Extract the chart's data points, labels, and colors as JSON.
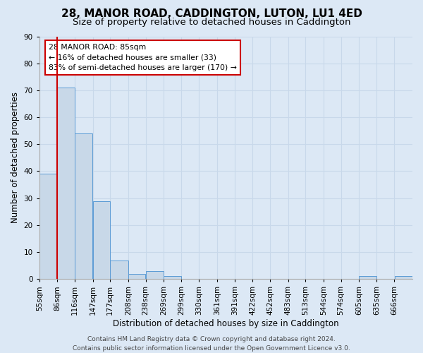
{
  "title": "28, MANOR ROAD, CADDINGTON, LUTON, LU1 4ED",
  "subtitle": "Size of property relative to detached houses in Caddington",
  "xlabel": "Distribution of detached houses by size in Caddington",
  "ylabel": "Number of detached properties",
  "bar_edges": [
    55,
    86,
    116,
    147,
    177,
    208,
    238,
    269,
    299,
    330,
    361,
    391,
    422,
    452,
    483,
    513,
    544,
    574,
    605,
    635,
    666,
    697
  ],
  "bar_heights": [
    39,
    71,
    54,
    29,
    7,
    2,
    3,
    1,
    0,
    0,
    0,
    0,
    0,
    0,
    0,
    0,
    0,
    0,
    1,
    0,
    1
  ],
  "bar_color": "#c8d8e8",
  "bar_edgecolor": "#5b9bd5",
  "property_line_x": 86,
  "property_line_color": "#cc0000",
  "annotation_text": "28 MANOR ROAD: 85sqm\n← 16% of detached houses are smaller (33)\n83% of semi-detached houses are larger (170) →",
  "annotation_box_color": "#ffffff",
  "annotation_box_edgecolor": "#cc0000",
  "ylim": [
    0,
    90
  ],
  "yticks": [
    0,
    10,
    20,
    30,
    40,
    50,
    60,
    70,
    80,
    90
  ],
  "grid_color": "#c8d8ea",
  "background_color": "#dce8f5",
  "footer_text": "Contains HM Land Registry data © Crown copyright and database right 2024.\nContains public sector information licensed under the Open Government Licence v3.0.",
  "title_fontsize": 11,
  "subtitle_fontsize": 9.5,
  "xlabel_fontsize": 8.5,
  "ylabel_fontsize": 8.5,
  "tick_fontsize": 7.5,
  "footer_fontsize": 6.5
}
